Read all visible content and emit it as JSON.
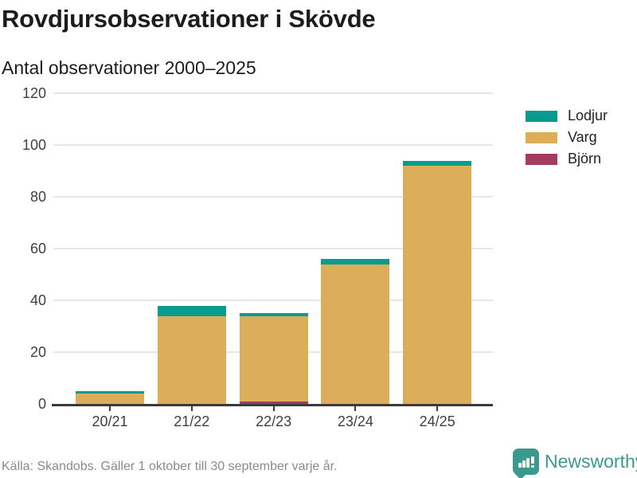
{
  "header": {
    "title": "Rovdjursobservationer i Skövde",
    "subtitle": "Antal observationer 2000–2025"
  },
  "chart_data": {
    "type": "bar",
    "stacked": true,
    "title": "Rovdjursobservationer i Skövde",
    "subtitle": "Antal observationer 2000–2025",
    "categories": [
      "20/21",
      "21/22",
      "22/23",
      "23/24",
      "24/25"
    ],
    "series": [
      {
        "name": "Lodjur",
        "color": "#089b8e",
        "values": [
          1,
          4,
          1,
          2,
          2
        ]
      },
      {
        "name": "Varg",
        "color": "#dcae59",
        "values": [
          4,
          34,
          33,
          54,
          92
        ]
      },
      {
        "name": "Björn",
        "color": "#a53a60",
        "values": [
          0,
          0,
          1,
          0,
          0
        ]
      }
    ],
    "stack_order": [
      "Björn",
      "Varg",
      "Lodjur"
    ],
    "totals": [
      5,
      38,
      35,
      56,
      94
    ],
    "xlabel": "",
    "ylabel": "",
    "ylim": [
      0,
      120
    ],
    "yticks": [
      0,
      20,
      40,
      60,
      80,
      100,
      120
    ],
    "grid": true,
    "legend_position": "right"
  },
  "footer": {
    "source_note": "Källa: Skandobs. Gäller 1 oktober till 30 september varje år.",
    "brand": "Newsworthy"
  },
  "colors": {
    "lodjur": "#089b8e",
    "varg": "#dcae59",
    "bjorn": "#a53a60",
    "axis": "#3a3a3a",
    "gridline": "#e6e6e6",
    "brand_teal": "#3a9a8e",
    "muted_text": "#8a8a8a"
  }
}
